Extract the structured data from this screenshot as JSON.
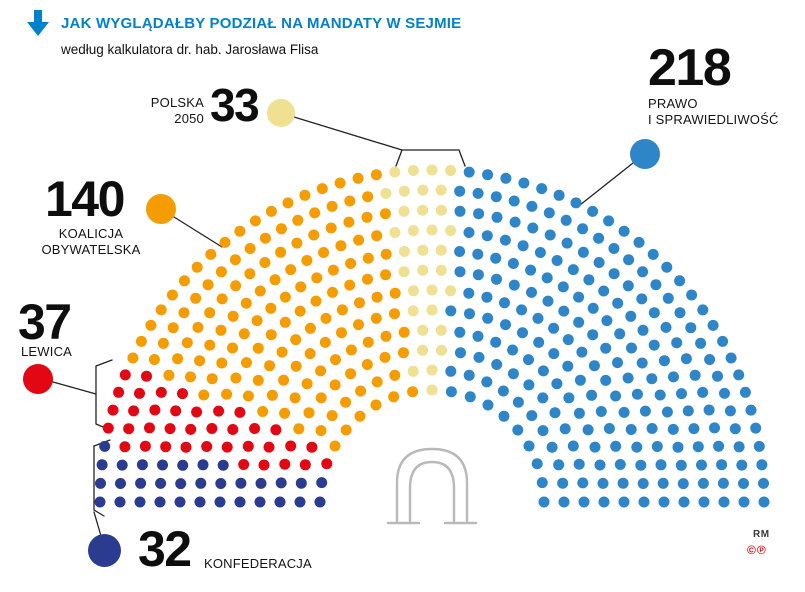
{
  "colors": {
    "accent": "#0082ca",
    "copyright_red": "#e30613",
    "line": "#222222",
    "door_gray": "#b9b9b9"
  },
  "header": {
    "title": "JAK WYGLĄDAŁBY PODZIAŁ NA MANDATY W SEJMIE",
    "subtitle": "według kalkulatora dr. hab. Jarosława Flisa"
  },
  "chart_data": {
    "type": "parliament",
    "title": "JAK WYGLĄDAŁBY PODZIAŁ NA MANDATY W SEJMIE",
    "subtitle": "według kalkulatora dr. hab. Jarosława Flisa",
    "total_seats": 460,
    "rows": 12,
    "order": "left-to-right",
    "series": [
      {
        "name": "KONFEDERACJA",
        "value": 32,
        "color": "#2b3b8f"
      },
      {
        "name": "LEWICA",
        "value": 37,
        "color": "#e30613"
      },
      {
        "name": "KOALICJA OBYWATELSKA",
        "value": 140,
        "color": "#f59c00"
      },
      {
        "name": "POLSKA 2050",
        "value": 33,
        "color": "#efe092"
      },
      {
        "name": "PRAWO I SPRAWIEDLIWOŚĆ",
        "value": 218,
        "color": "#2e85c7"
      }
    ]
  },
  "legend": {
    "polska2050": {
      "line1": "POLSKA",
      "line2": "2050"
    },
    "pis": {
      "line1": "PRAWO",
      "line2": "I SPRAWIEDLIWOŚĆ"
    },
    "ko": {
      "line1": "KOALICJA",
      "line2": "OBYWATELSKA"
    },
    "lewica": {
      "line1": "LEWICA"
    },
    "konfederacja": {
      "line1": "KONFEDERACJA"
    }
  },
  "footer": {
    "credit": "RM",
    "rights": "©℗"
  }
}
